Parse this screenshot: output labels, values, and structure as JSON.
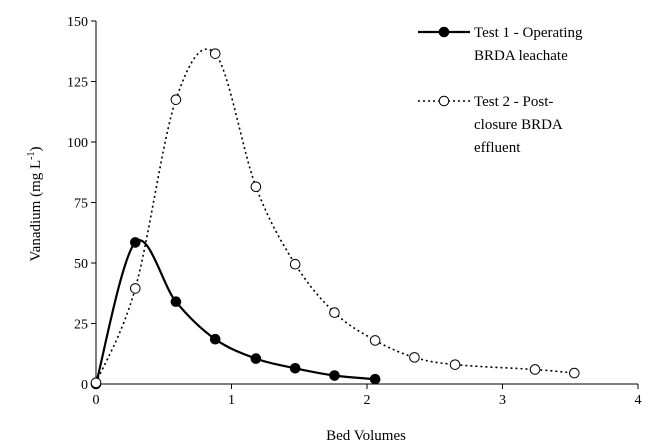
{
  "chart_data": {
    "type": "line",
    "title": "",
    "xlabel": "Bed Volumes",
    "ylabel_main": "Vanadium (mg L",
    "ylabel_sup": "-1",
    "ylabel_close": ")",
    "xlim": [
      0,
      4
    ],
    "ylim": [
      0,
      150
    ],
    "xticks": [
      "0",
      "1",
      "2",
      "3",
      "4"
    ],
    "yticks": [
      "0",
      "25",
      "50",
      "75",
      "100",
      "125",
      "150"
    ],
    "grid": false,
    "legend_position": "top-right",
    "series": [
      {
        "name_lines": [
          "Test 1 - Operating",
          "BRDA leachate"
        ],
        "line_style": "solid",
        "marker": "filled-circle",
        "color": "#000000",
        "x": [
          0,
          0.29,
          0.59,
          0.88,
          1.18,
          1.47,
          1.76,
          2.06
        ],
        "y": [
          0,
          58.5,
          34,
          18.5,
          10.5,
          6.5,
          3.5,
          2
        ]
      },
      {
        "name_lines": [
          "Test 2 - Post-",
          "closure BRDA",
          "effluent"
        ],
        "line_style": "dotted",
        "marker": "open-circle",
        "color": "#000000",
        "x": [
          0,
          0.29,
          0.59,
          0.88,
          1.18,
          1.47,
          1.76,
          2.06,
          2.35,
          2.65,
          3.24,
          3.53
        ],
        "y": [
          0.5,
          39.5,
          117.5,
          136.5,
          81.5,
          49.5,
          29.5,
          18,
          11,
          8,
          6,
          4.5
        ]
      }
    ]
  }
}
